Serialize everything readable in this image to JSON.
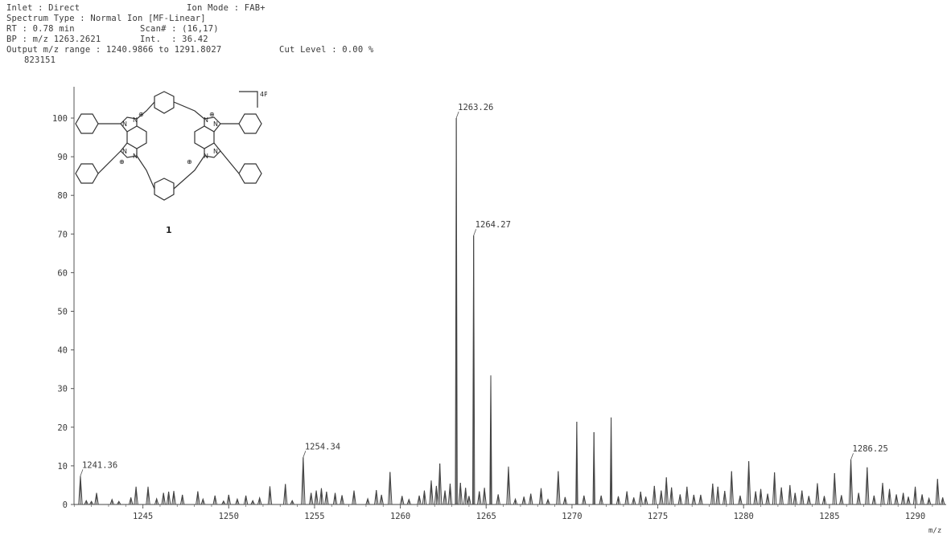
{
  "header": {
    "inlet": "Inlet : Direct",
    "ion_mode": "Ion Mode : FAB+",
    "spectrum_type": "Spectrum Type : Normal Ion [MF-Linear]",
    "rt": "RT : 0.78 min",
    "scan": "Scan# : (16,17)",
    "bp": "BP : m/z 1263.2621",
    "int": "Int.  : 36.42",
    "output_range": "Output m/z range : 1240.9866 to 1291.8027",
    "cut_level": "Cut Level : 0.00 %",
    "max_intensity": "823151"
  },
  "structure": {
    "counterion": "4PF6-",
    "compound_number": "1"
  },
  "chart_data": {
    "type": "line",
    "title": "",
    "xlabel": "m/z",
    "ylabel": "",
    "xlim": [
      1240.9866,
      1291.8027
    ],
    "ylim": [
      0,
      100
    ],
    "x_ticks": [
      "1245",
      "1250",
      "1255",
      "1260",
      "1265",
      "1270",
      "1275",
      "1280",
      "1285",
      "1290"
    ],
    "y_ticks": [
      "0",
      "10",
      "20",
      "30",
      "40",
      "50",
      "60",
      "70",
      "80",
      "90",
      "100"
    ],
    "grid": false,
    "peak_labels": [
      {
        "mz": 1241.36,
        "intensity": 7.4,
        "label": "1241.36"
      },
      {
        "mz": 1254.34,
        "intensity": 12.2,
        "label": "1254.34"
      },
      {
        "mz": 1263.26,
        "intensity": 100,
        "label": "1263.26"
      },
      {
        "mz": 1264.27,
        "intensity": 69.6,
        "label": "1264.27"
      },
      {
        "mz": 1286.25,
        "intensity": 11.6,
        "label": "1286.25"
      }
    ],
    "peaks": [
      [
        1241.36,
        7.4
      ],
      [
        1241.7,
        1.0
      ],
      [
        1242.0,
        0.8
      ],
      [
        1242.3,
        3.0
      ],
      [
        1243.2,
        1.3
      ],
      [
        1243.6,
        0.8
      ],
      [
        1244.3,
        1.8
      ],
      [
        1244.6,
        4.6
      ],
      [
        1245.3,
        4.6
      ],
      [
        1245.8,
        1.5
      ],
      [
        1246.2,
        3.0
      ],
      [
        1246.5,
        3.3
      ],
      [
        1246.8,
        3.5
      ],
      [
        1247.3,
        2.5
      ],
      [
        1248.2,
        3.4
      ],
      [
        1248.5,
        1.4
      ],
      [
        1249.2,
        2.3
      ],
      [
        1249.7,
        0.9
      ],
      [
        1250.0,
        2.5
      ],
      [
        1250.5,
        1.4
      ],
      [
        1251.0,
        2.3
      ],
      [
        1251.4,
        1.0
      ],
      [
        1251.8,
        1.7
      ],
      [
        1252.4,
        4.7
      ],
      [
        1253.3,
        5.3
      ],
      [
        1253.7,
        1.0
      ],
      [
        1254.34,
        12.2
      ],
      [
        1254.8,
        3.0
      ],
      [
        1255.1,
        3.6
      ],
      [
        1255.4,
        4.2
      ],
      [
        1255.7,
        3.3
      ],
      [
        1256.2,
        3.0
      ],
      [
        1256.6,
        2.4
      ],
      [
        1257.3,
        3.6
      ],
      [
        1258.1,
        1.5
      ],
      [
        1258.6,
        3.7
      ],
      [
        1258.9,
        2.5
      ],
      [
        1259.4,
        8.4
      ],
      [
        1260.1,
        2.2
      ],
      [
        1260.5,
        1.3
      ],
      [
        1261.1,
        2.3
      ],
      [
        1261.4,
        3.6
      ],
      [
        1261.8,
        6.2
      ],
      [
        1262.1,
        4.8
      ],
      [
        1262.3,
        10.6
      ],
      [
        1262.6,
        3.6
      ],
      [
        1262.9,
        5.4
      ],
      [
        1263.26,
        100
      ],
      [
        1263.5,
        5.6
      ],
      [
        1263.8,
        4.3
      ],
      [
        1264.0,
        2.2
      ],
      [
        1264.27,
        69.6
      ],
      [
        1264.6,
        3.4
      ],
      [
        1264.9,
        4.3
      ],
      [
        1265.27,
        33.4
      ],
      [
        1265.7,
        2.6
      ],
      [
        1266.3,
        9.8
      ],
      [
        1266.7,
        1.4
      ],
      [
        1267.2,
        2.0
      ],
      [
        1267.6,
        2.8
      ],
      [
        1268.2,
        4.2
      ],
      [
        1268.6,
        1.3
      ],
      [
        1269.2,
        8.6
      ],
      [
        1269.6,
        1.9
      ],
      [
        1270.28,
        21.4
      ],
      [
        1270.7,
        2.3
      ],
      [
        1271.28,
        18.7
      ],
      [
        1271.7,
        2.3
      ],
      [
        1272.28,
        22.5
      ],
      [
        1272.7,
        2.1
      ],
      [
        1273.2,
        3.4
      ],
      [
        1273.6,
        1.8
      ],
      [
        1274.0,
        3.3
      ],
      [
        1274.3,
        2.0
      ],
      [
        1274.8,
        4.8
      ],
      [
        1275.2,
        3.6
      ],
      [
        1275.5,
        7.0
      ],
      [
        1275.8,
        4.4
      ],
      [
        1276.3,
        2.6
      ],
      [
        1276.7,
        4.6
      ],
      [
        1277.1,
        2.5
      ],
      [
        1277.5,
        2.5
      ],
      [
        1278.2,
        5.4
      ],
      [
        1278.5,
        4.6
      ],
      [
        1278.9,
        3.5
      ],
      [
        1279.3,
        8.6
      ],
      [
        1279.8,
        2.3
      ],
      [
        1280.3,
        11.2
      ],
      [
        1280.7,
        3.4
      ],
      [
        1281.0,
        4.0
      ],
      [
        1281.4,
        2.8
      ],
      [
        1281.8,
        8.3
      ],
      [
        1282.2,
        4.4
      ],
      [
        1282.7,
        5.0
      ],
      [
        1283.0,
        3.0
      ],
      [
        1283.4,
        3.6
      ],
      [
        1283.8,
        2.2
      ],
      [
        1284.3,
        5.5
      ],
      [
        1284.7,
        2.2
      ],
      [
        1285.3,
        8.1
      ],
      [
        1285.7,
        2.4
      ],
      [
        1286.25,
        11.6
      ],
      [
        1286.7,
        3.0
      ],
      [
        1287.2,
        9.6
      ],
      [
        1287.6,
        2.3
      ],
      [
        1288.1,
        5.6
      ],
      [
        1288.5,
        4.0
      ],
      [
        1288.9,
        2.6
      ],
      [
        1289.3,
        3.0
      ],
      [
        1289.6,
        2.0
      ],
      [
        1290.0,
        4.6
      ],
      [
        1290.4,
        2.6
      ],
      [
        1290.8,
        1.6
      ],
      [
        1291.3,
        6.6
      ],
      [
        1291.6,
        1.8
      ]
    ]
  }
}
